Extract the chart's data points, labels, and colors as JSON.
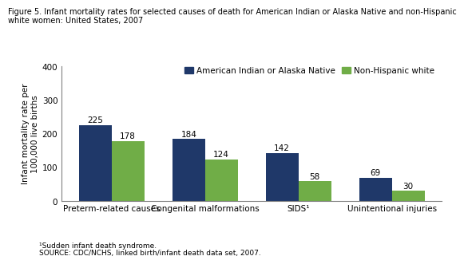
{
  "title_line1": "Figure 5. Infant mortality rates for selected causes of death for American Indian or Alaska Native and non-Hispanic",
  "title_line2": "white women: United States, 2007",
  "categories": [
    "Preterm-related causes",
    "Congenital malformations",
    "SIDS¹",
    "Unintentional injuries"
  ],
  "aian_values": [
    225,
    184,
    142,
    69
  ],
  "nhw_values": [
    178,
    124,
    58,
    30
  ],
  "aian_color": "#1f3869",
  "nhw_color": "#70ad47",
  "ylabel": "Infant mortality rate per\n100,000 live births",
  "ylim": [
    0,
    400
  ],
  "yticks": [
    0,
    100,
    200,
    300,
    400
  ],
  "legend_aian": "American Indian or Alaska Native",
  "legend_nhw": "Non-Hispanic white",
  "footnote1": "¹Sudden infant death syndrome.",
  "footnote2": "SOURCE: CDC/NCHS, linked birth/infant death data set, 2007.",
  "bar_width": 0.35,
  "title_fontsize": 7.0,
  "axis_fontsize": 7.5,
  "label_fontsize": 7.5,
  "tick_fontsize": 7.5,
  "footnote_fontsize": 6.5,
  "legend_fontsize": 7.5
}
